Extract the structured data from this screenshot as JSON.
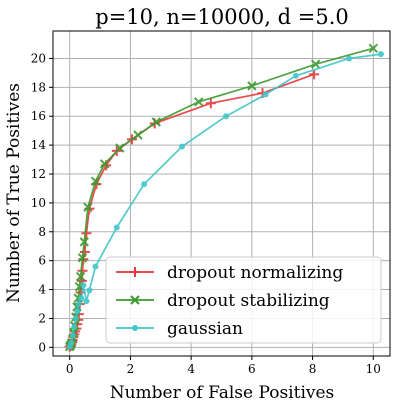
{
  "chart_data": {
    "type": "line",
    "title": "p=10, n=10000, d =5.0",
    "xlabel": "Number of False Positives",
    "ylabel": "Number of True Positives",
    "xlim": [
      -0.55,
      10.55
    ],
    "ylim": [
      -0.6,
      21.9
    ],
    "xticks": [
      0,
      2,
      4,
      6,
      8,
      10
    ],
    "yticks": [
      0,
      2,
      4,
      6,
      8,
      10,
      12,
      14,
      16,
      18,
      20
    ],
    "grid": true,
    "legend_position": "lower-right",
    "series": [
      {
        "name": "dropout normalizing",
        "color": "#e8383b",
        "marker": "plus",
        "points": [
          [
            0.0,
            0.05
          ],
          [
            0.03,
            0.1
          ],
          [
            0.05,
            0.2
          ],
          [
            0.08,
            0.35
          ],
          [
            0.1,
            0.5
          ],
          [
            0.12,
            0.7
          ],
          [
            0.15,
            0.9
          ],
          [
            0.18,
            1.1
          ],
          [
            0.22,
            1.3
          ],
          [
            0.25,
            1.6
          ],
          [
            0.28,
            1.9
          ],
          [
            0.3,
            2.3
          ],
          [
            0.33,
            3.0
          ],
          [
            0.36,
            3.8
          ],
          [
            0.4,
            4.6
          ],
          [
            0.42,
            5.3
          ],
          [
            0.45,
            6.1
          ],
          [
            0.5,
            6.6
          ],
          [
            0.55,
            7.9
          ],
          [
            0.65,
            9.6
          ],
          [
            0.88,
            11.3
          ],
          [
            1.2,
            12.6
          ],
          [
            1.55,
            13.6
          ],
          [
            2.05,
            14.4
          ],
          [
            2.8,
            15.5
          ],
          [
            4.65,
            16.9
          ],
          [
            6.35,
            17.6
          ],
          [
            8.05,
            18.9
          ]
        ]
      },
      {
        "name": "dropout stabilizing",
        "color": "#3a9a2e",
        "marker": "x",
        "points": [
          [
            0.0,
            0.05
          ],
          [
            0.03,
            0.15
          ],
          [
            0.06,
            0.3
          ],
          [
            0.1,
            0.6
          ],
          [
            0.13,
            1.0
          ],
          [
            0.16,
            1.5
          ],
          [
            0.2,
            2.1
          ],
          [
            0.24,
            2.8
          ],
          [
            0.28,
            3.4
          ],
          [
            0.32,
            4.2
          ],
          [
            0.36,
            4.9
          ],
          [
            0.42,
            6.2
          ],
          [
            0.48,
            7.3
          ],
          [
            0.6,
            9.7
          ],
          [
            0.85,
            11.5
          ],
          [
            1.15,
            12.7
          ],
          [
            1.65,
            13.8
          ],
          [
            2.25,
            14.7
          ],
          [
            2.85,
            15.6
          ],
          [
            4.25,
            17.0
          ],
          [
            6.0,
            18.1
          ],
          [
            8.1,
            19.6
          ],
          [
            10.0,
            20.7
          ]
        ]
      },
      {
        "name": "gaussian",
        "color": "#3ec6c8",
        "marker": "circle",
        "points": [
          [
            0.0,
            0.05
          ],
          [
            0.05,
            0.3
          ],
          [
            0.1,
            0.8
          ],
          [
            0.15,
            1.4
          ],
          [
            0.2,
            2.0
          ],
          [
            0.25,
            2.5
          ],
          [
            0.3,
            3.0
          ],
          [
            0.38,
            3.4
          ],
          [
            0.45,
            4.3
          ],
          [
            0.55,
            3.2
          ],
          [
            0.65,
            3.95
          ],
          [
            0.85,
            5.6
          ],
          [
            1.55,
            8.3
          ],
          [
            2.45,
            11.3
          ],
          [
            3.7,
            13.9
          ],
          [
            5.15,
            16.0
          ],
          [
            6.45,
            17.5
          ],
          [
            7.45,
            18.8
          ],
          [
            9.2,
            20.0
          ],
          [
            10.25,
            20.3
          ]
        ]
      }
    ]
  }
}
